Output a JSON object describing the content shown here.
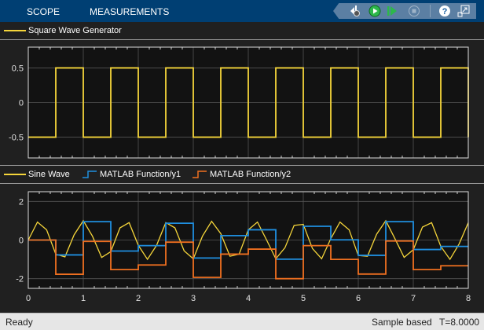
{
  "toolbar": {
    "tabs": [
      "SCOPE",
      "MEASUREMENTS"
    ],
    "icons": [
      "settings-back-icon",
      "run-icon",
      "step-forward-icon",
      "stop-icon",
      "help-icon",
      "undock-icon"
    ]
  },
  "legend1": {
    "items": [
      {
        "label": "Square Wave Generator",
        "color": "#f5d53a"
      }
    ]
  },
  "legend2": {
    "items": [
      {
        "label": "Sine Wave",
        "color": "#f5d53a"
      },
      {
        "label": "MATLAB Function/y1",
        "color": "#1f8fe0"
      },
      {
        "label": "MATLAB Function/y2",
        "color": "#f07020"
      }
    ]
  },
  "status": {
    "left": "Ready",
    "mode": "Sample based",
    "time": "T=8.0000"
  },
  "chart_data": [
    {
      "type": "line",
      "step": true,
      "xlim": [
        0,
        8
      ],
      "ylim": [
        -0.8,
        0.8
      ],
      "yticks": [
        "0.5",
        "0",
        "-0.5"
      ],
      "ytick_values": [
        0.5,
        0,
        -0.5
      ],
      "grid": true,
      "series": [
        {
          "name": "Square Wave Generator",
          "color": "#f5d53a",
          "period": 1,
          "low": -0.5,
          "high": 0.5,
          "first_rise": 0.5
        }
      ]
    },
    {
      "type": "line",
      "xlim": [
        0,
        8
      ],
      "ylim": [
        -2.5,
        2.5
      ],
      "yticks": [
        "2",
        "0",
        "-2"
      ],
      "ytick_values": [
        2,
        0,
        -2
      ],
      "xticks": [
        "0",
        "1",
        "2",
        "3",
        "4",
        "5",
        "6",
        "7",
        "8"
      ],
      "grid": true,
      "series": [
        {
          "name": "Sine Wave",
          "color": "#f5d53a",
          "dt": 0.16667,
          "values": [
            0,
            0.93,
            0.53,
            -0.73,
            -0.87,
            0.27,
            1,
            0.2,
            -0.9,
            -0.6,
            0.63,
            0.9,
            -0.27,
            -1,
            -0.27,
            0.9,
            0.63,
            -0.56,
            -0.97,
            0.2,
            0.97,
            0.33,
            -0.84,
            -0.73,
            0.53,
            0.93,
            0,
            -0.97,
            -0.4,
            0.76,
            0.81,
            -0.44,
            -0.97,
            0.07,
            0.93,
            0.53,
            -0.8,
            -0.84,
            0.3,
            1,
            0.07,
            -0.9,
            -0.5,
            0.67,
            0.9,
            -0.33,
            -1,
            -0.2,
            0.9
          ]
        },
        {
          "name": "MATLAB Function/y1",
          "color": "#1f8fe0",
          "step": true,
          "dt": 0.5,
          "values": [
            0,
            -0.77,
            0.95,
            -0.57,
            -0.29,
            0.87,
            -0.93,
            0.23,
            0.53,
            -0.99,
            0.71,
            0.01,
            -0.79,
            0.95,
            -0.49,
            -0.33
          ]
        },
        {
          "name": "MATLAB Function/y2",
          "color": "#f07020",
          "step": true,
          "dt": 0.5,
          "values": [
            0,
            -1.77,
            -0.07,
            -1.53,
            -1.29,
            -0.11,
            -1.93,
            -0.73,
            -0.47,
            -2,
            -0.29,
            -1,
            -1.76,
            -0.05,
            -1.53,
            -1.33
          ]
        }
      ]
    }
  ]
}
